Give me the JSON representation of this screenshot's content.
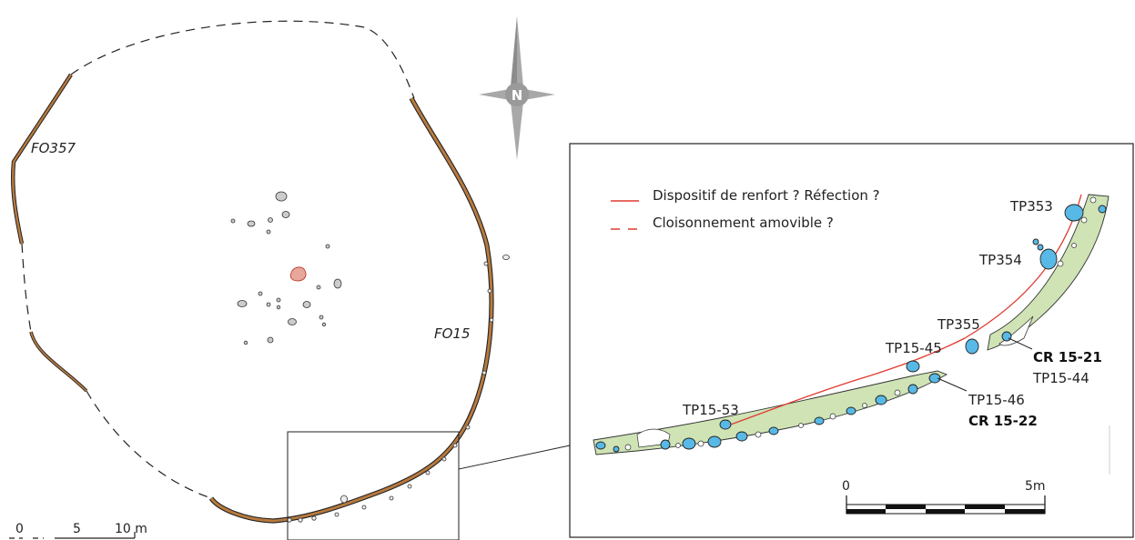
{
  "overview": {
    "labels": {
      "fo357": "FO357",
      "fo15": "FO15"
    },
    "scale": {
      "t0": "0",
      "t5": "5",
      "t10": "10 m"
    }
  },
  "inset": {
    "legend": {
      "solid": "Dispositif de renfort ? Réfection ?",
      "dashed": "Cloisonnement amovible ?"
    },
    "features": {
      "tp353": "TP353",
      "tp354": "TP354",
      "tp355": "TP355",
      "tp1545": "TP15-45",
      "tp1553": "TP15-53",
      "tp1546": "TP15-46",
      "tp1544": "TP15-44",
      "cr1521": "CR 15-21",
      "cr1522": "CR 15-22"
    },
    "scale": {
      "t0": "0",
      "t5": "5m"
    }
  },
  "colors": {
    "ditch_fill": "#b87a3e",
    "post_fill": "#58b8e6",
    "hearth_fill": "#e8a79b",
    "trench_fill": "#cfe3b5",
    "legend_red": "#e03a2f",
    "compass": "#9a9a9a"
  },
  "icons": {
    "compass": "north-arrow-icon"
  }
}
